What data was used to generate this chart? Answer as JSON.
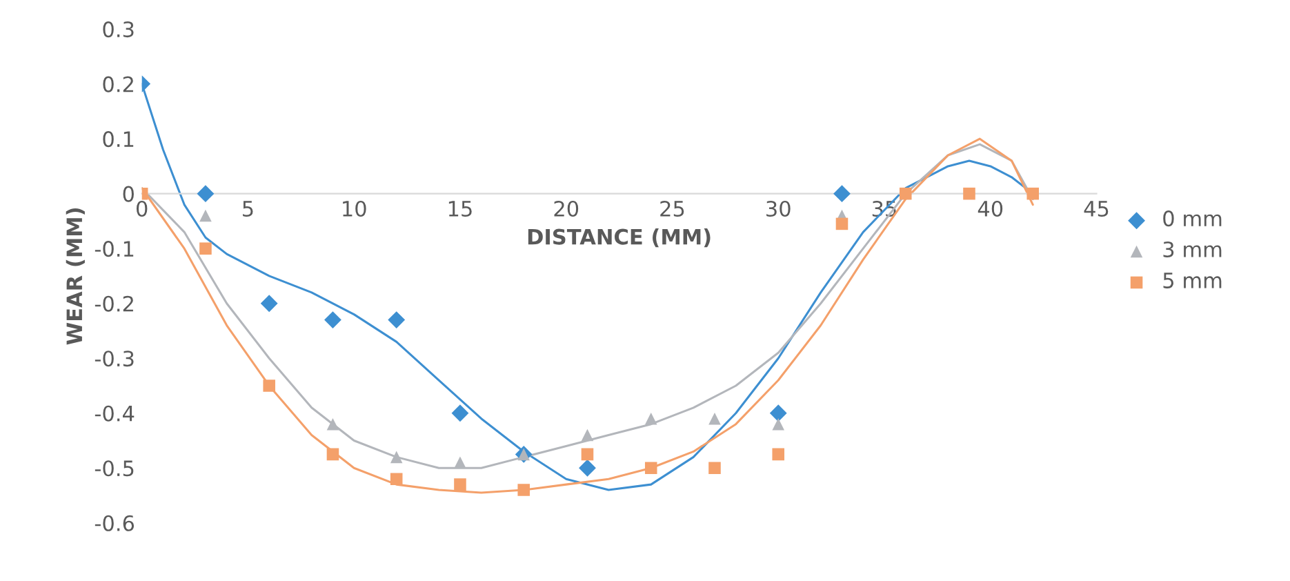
{
  "chart_data": {
    "type": "scatter",
    "xlabel": "DISTANCE (MM)",
    "ylabel": "WEAR (MM)",
    "x": [
      0,
      3,
      6,
      9,
      12,
      15,
      18,
      21,
      24,
      27,
      30,
      33,
      36,
      39,
      42
    ],
    "xlim": [
      0,
      45
    ],
    "xticks": [
      0,
      5,
      10,
      15,
      20,
      25,
      30,
      35,
      40,
      45
    ],
    "ylim": [
      -0.6,
      0.3
    ],
    "yticks": [
      -0.6,
      -0.5,
      -0.4,
      -0.3,
      -0.2,
      -0.1,
      0,
      0.1,
      0.2,
      0.3
    ],
    "grid": false,
    "legend": "right",
    "series": [
      {
        "name": "0 mm",
        "color": "#3d8fd1",
        "marker": "diamond",
        "values": [
          0.2,
          0,
          -0.2,
          -0.23,
          -0.23,
          -0.4,
          -0.475,
          -0.5,
          null,
          null,
          -0.4,
          0,
          null,
          null,
          null
        ]
      },
      {
        "name": "3 mm",
        "color": "#b3b6bb",
        "marker": "triangle",
        "values": [
          null,
          -0.04,
          null,
          -0.42,
          -0.48,
          -0.49,
          -0.475,
          -0.44,
          -0.41,
          -0.41,
          -0.42,
          -0.04,
          null,
          null,
          null
        ]
      },
      {
        "name": "5 mm",
        "color": "#f4a06a",
        "marker": "square",
        "values": [
          0,
          -0.1,
          -0.35,
          -0.475,
          -0.52,
          -0.53,
          -0.54,
          -0.475,
          -0.5,
          -0.5,
          -0.475,
          -0.055,
          0,
          0,
          0
        ]
      },
      {
        "type": "line",
        "color": "#3d8fd1",
        "x": [
          0,
          1,
          2,
          3,
          4,
          6,
          8,
          10,
          12,
          14,
          16,
          18,
          20,
          22,
          24,
          26,
          28,
          30,
          32,
          34,
          36,
          38,
          39,
          40,
          41,
          42
        ],
        "values": [
          0.2,
          0.08,
          -0.02,
          -0.08,
          -0.11,
          -0.15,
          -0.18,
          -0.22,
          -0.27,
          -0.34,
          -0.41,
          -0.47,
          -0.52,
          -0.54,
          -0.53,
          -0.48,
          -0.4,
          -0.3,
          -0.18,
          -0.07,
          0.01,
          0.05,
          0.06,
          0.05,
          0.03,
          0
        ]
      },
      {
        "type": "line",
        "color": "#b3b6bb",
        "x": [
          0,
          2,
          4,
          6,
          8,
          10,
          12,
          14,
          16,
          18,
          20,
          22,
          24,
          26,
          28,
          30,
          32,
          34,
          36,
          38,
          39.5,
          41,
          42
        ],
        "values": [
          0.01,
          -0.07,
          -0.2,
          -0.3,
          -0.39,
          -0.45,
          -0.48,
          -0.5,
          -0.5,
          -0.48,
          -0.46,
          -0.44,
          -0.42,
          -0.39,
          -0.35,
          -0.29,
          -0.2,
          -0.1,
          0,
          0.07,
          0.09,
          0.06,
          -0.01
        ]
      },
      {
        "type": "line",
        "color": "#f4a06a",
        "x": [
          0,
          2,
          4,
          6,
          8,
          10,
          12,
          14,
          16,
          18,
          20,
          22,
          24,
          26,
          28,
          30,
          32,
          34,
          36,
          38,
          39.5,
          41,
          42
        ],
        "values": [
          0.01,
          -0.1,
          -0.24,
          -0.35,
          -0.44,
          -0.5,
          -0.53,
          -0.54,
          -0.545,
          -0.54,
          -0.53,
          -0.52,
          -0.5,
          -0.47,
          -0.42,
          -0.34,
          -0.24,
          -0.12,
          -0.01,
          0.07,
          0.1,
          0.06,
          -0.02
        ]
      }
    ]
  }
}
